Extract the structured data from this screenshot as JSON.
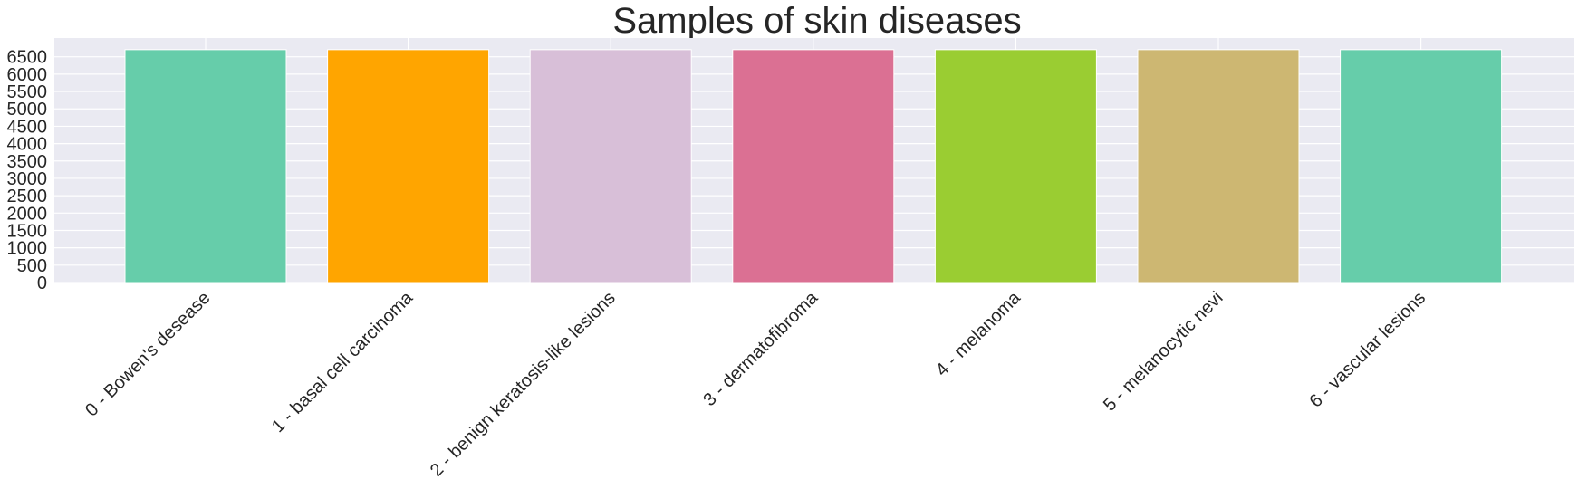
{
  "chart_data": {
    "type": "bar",
    "title": "Samples of skin diseases",
    "xlabel": "",
    "ylabel": "",
    "categories": [
      "0 - Bowen's desease",
      "1 - basal cell carcinoma",
      "2 - benign keratosis-like lesions",
      "3 - dermatofibroma",
      "4 - melanoma",
      "5 - melanocytic nevi",
      "6 - vascular lesions"
    ],
    "values": [
      6705,
      6705,
      6705,
      6705,
      6705,
      6705,
      6705
    ],
    "colors": [
      "#66cdaa",
      "#ffa500",
      "#d8bfd8",
      "#db7093",
      "#9acd32",
      "#cdb772",
      "#66cdaa"
    ],
    "yticks": [
      0,
      500,
      1000,
      1500,
      2000,
      2500,
      3000,
      3500,
      4000,
      4500,
      5000,
      5500,
      6000,
      6500
    ],
    "ylim": [
      0,
      7040
    ],
    "grid": true,
    "background": "#eaeaf2",
    "gridColor": "#ffffff"
  }
}
